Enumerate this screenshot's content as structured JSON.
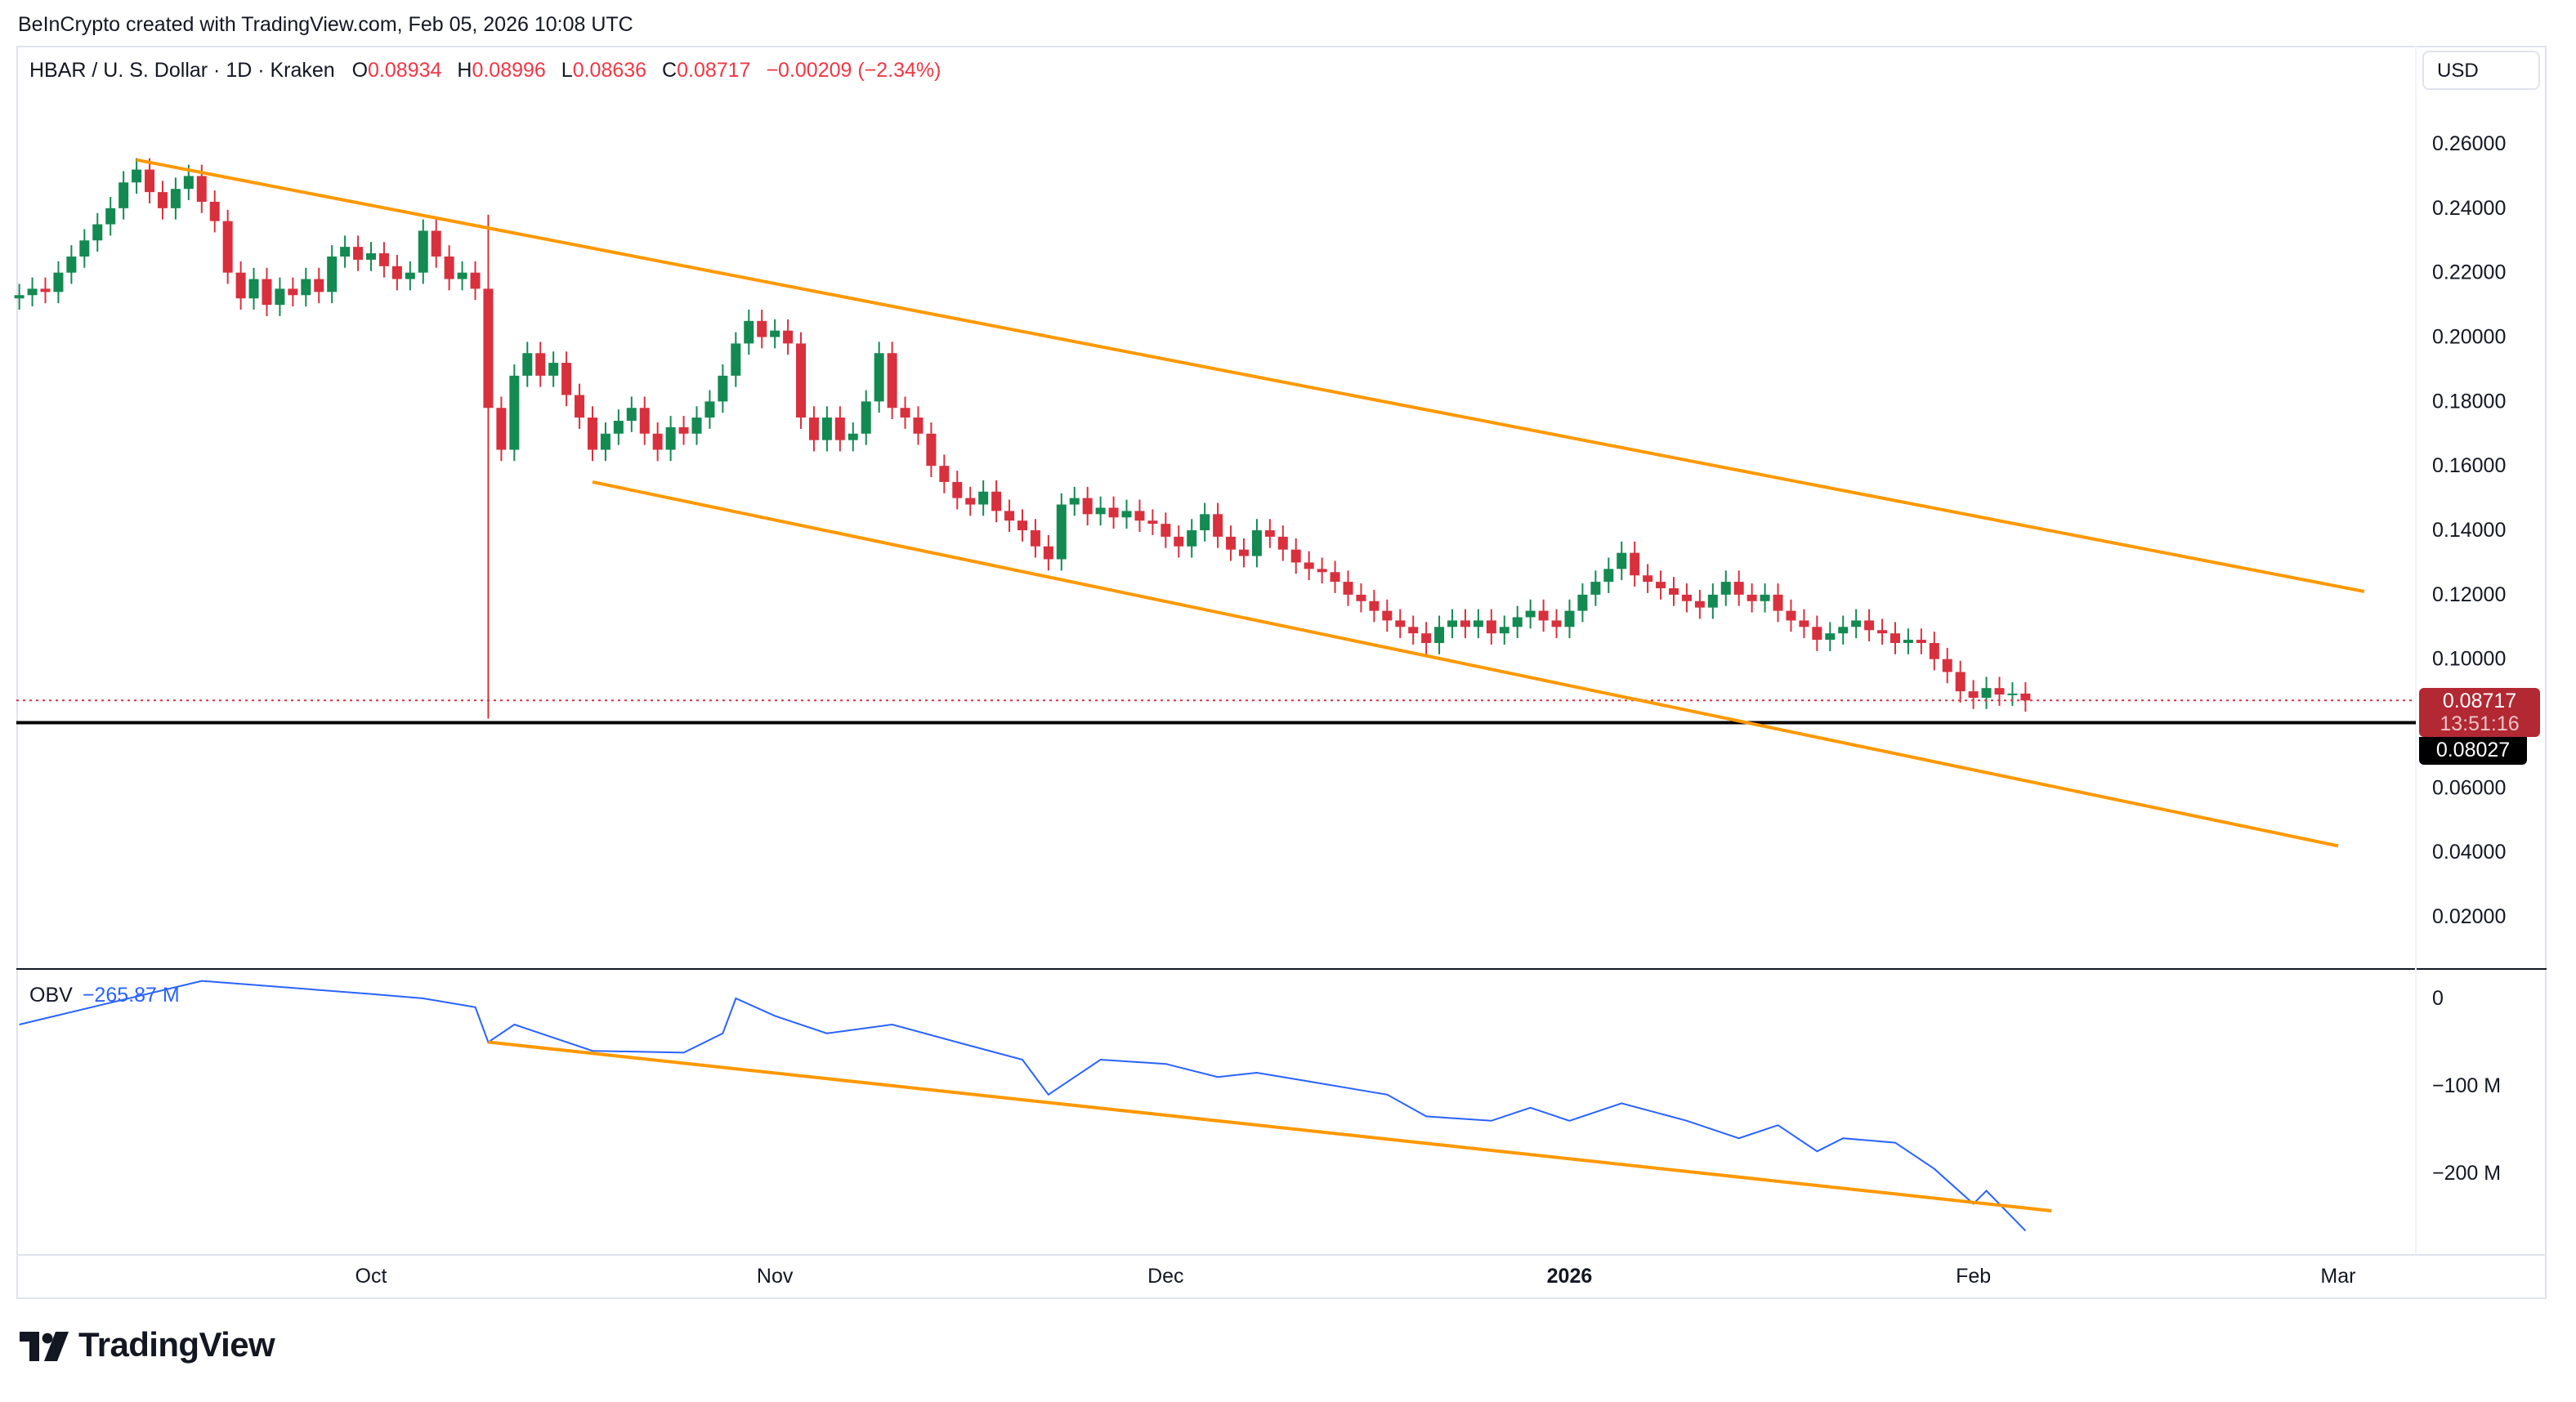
{
  "attribution": "BeInCrypto created with TradingView.com, Feb 05, 2026 10:08 UTC",
  "legend": {
    "symbol": "HBAR / U. S. Dollar · 1D · Kraken",
    "o_label": "O",
    "open": "0.08934",
    "h_label": "H",
    "high": "0.08996",
    "l_label": "L",
    "low": "0.08636",
    "c_label": "C",
    "close": "0.08717",
    "change": "−0.00209 (−2.34%)"
  },
  "currency_button": "USD",
  "price_tag": {
    "value": "0.08717",
    "countdown": "13:51:16"
  },
  "support_tag": "0.08027",
  "obv_label": "OBV",
  "obv_value": "−265.87 M",
  "logo_text": "TradingView",
  "colors": {
    "up": "#138a52",
    "down": "#d9303e",
    "trend": "#ff9800",
    "obv": "#2962ff"
  },
  "chart_data": [
    {
      "type": "candlestick",
      "title": "HBAR / U. S. Dollar · 1D · Kraken",
      "start_date": "2025-09-04",
      "closes": [
        0.213,
        0.215,
        0.214,
        0.22,
        0.225,
        0.23,
        0.235,
        0.24,
        0.248,
        0.252,
        0.245,
        0.24,
        0.246,
        0.25,
        0.242,
        0.236,
        0.22,
        0.212,
        0.218,
        0.21,
        0.215,
        0.213,
        0.218,
        0.214,
        0.225,
        0.228,
        0.224,
        0.226,
        0.222,
        0.218,
        0.22,
        0.233,
        0.225,
        0.218,
        0.22,
        0.215,
        0.178,
        0.165,
        0.188,
        0.195,
        0.188,
        0.192,
        0.182,
        0.175,
        0.165,
        0.17,
        0.174,
        0.178,
        0.17,
        0.165,
        0.172,
        0.17,
        0.175,
        0.18,
        0.188,
        0.198,
        0.205,
        0.2,
        0.202,
        0.198,
        0.175,
        0.168,
        0.175,
        0.168,
        0.17,
        0.18,
        0.195,
        0.178,
        0.175,
        0.17,
        0.16,
        0.155,
        0.15,
        0.148,
        0.152,
        0.146,
        0.143,
        0.14,
        0.135,
        0.131,
        0.148,
        0.15,
        0.145,
        0.147,
        0.144,
        0.146,
        0.143,
        0.142,
        0.138,
        0.135,
        0.14,
        0.145,
        0.138,
        0.134,
        0.132,
        0.14,
        0.138,
        0.134,
        0.13,
        0.128,
        0.127,
        0.124,
        0.12,
        0.118,
        0.115,
        0.112,
        0.11,
        0.108,
        0.105,
        0.11,
        0.112,
        0.11,
        0.112,
        0.108,
        0.11,
        0.113,
        0.115,
        0.112,
        0.11,
        0.115,
        0.12,
        0.124,
        0.128,
        0.133,
        0.126,
        0.124,
        0.122,
        0.12,
        0.118,
        0.116,
        0.12,
        0.124,
        0.12,
        0.118,
        0.12,
        0.115,
        0.112,
        0.11,
        0.106,
        0.108,
        0.11,
        0.112,
        0.109,
        0.108,
        0.105,
        0.106,
        0.105,
        0.1,
        0.096,
        0.09,
        0.088,
        0.091,
        0.089,
        0.0893,
        0.08717
      ],
      "first_open": 0.212,
      "crash_candle": {
        "date": "2025-10-10",
        "low": 0.0815,
        "high": 0.238
      },
      "y_ticks": [
        "0.26000",
        "0.24000",
        "0.22000",
        "0.20000",
        "0.18000",
        "0.16000",
        "0.14000",
        "0.12000",
        "0.10000",
        "0.06000",
        "0.04000",
        "0.02000"
      ],
      "y_tick_values": [
        0.26,
        0.24,
        0.22,
        0.2,
        0.18,
        0.16,
        0.14,
        0.12,
        0.1,
        0.06,
        0.04,
        0.02
      ],
      "ylim": [
        0.0,
        0.27
      ],
      "x_ticks": [
        {
          "label": "Oct",
          "date": "2025-10-01"
        },
        {
          "label": "Nov",
          "date": "2025-11-01"
        },
        {
          "label": "Dec",
          "date": "2025-12-01"
        },
        {
          "label": "2026",
          "date": "2026-01-01"
        },
        {
          "label": "Feb",
          "date": "2026-02-01"
        },
        {
          "label": "Mar",
          "date": "2026-03-01"
        }
      ],
      "support_level": 0.08027,
      "trendlines": [
        {
          "name": "upper-channel",
          "from": [
            "2025-09-13",
            0.255
          ],
          "to": [
            "2026-03-03",
            0.121
          ]
        },
        {
          "name": "lower-channel",
          "from": [
            "2025-10-18",
            0.155
          ],
          "to": [
            "2026-03-01",
            0.042
          ]
        }
      ]
    },
    {
      "type": "line",
      "title": "OBV",
      "unit": "M",
      "dates": [
        "2025-09-04",
        "2025-09-18",
        "2025-10-01",
        "2025-10-05",
        "2025-10-09",
        "2025-10-10",
        "2025-10-12",
        "2025-10-18",
        "2025-10-25",
        "2025-10-28",
        "2025-10-29",
        "2025-11-01",
        "2025-11-05",
        "2025-11-10",
        "2025-11-15",
        "2025-11-20",
        "2025-11-22",
        "2025-11-26",
        "2025-12-01",
        "2025-12-05",
        "2025-12-08",
        "2025-12-12",
        "2025-12-18",
        "2025-12-21",
        "2025-12-26",
        "2025-12-29",
        "2026-01-01",
        "2026-01-05",
        "2026-01-10",
        "2026-01-14",
        "2026-01-17",
        "2026-01-20",
        "2026-01-22",
        "2026-01-26",
        "2026-01-29",
        "2026-02-01",
        "2026-02-02",
        "2026-02-05"
      ],
      "values": [
        -30,
        20,
        5,
        0,
        -10,
        -50,
        -30,
        -60,
        -62,
        -40,
        0,
        -20,
        -40,
        -30,
        -50,
        -70,
        -110,
        -70,
        -75,
        -90,
        -85,
        -95,
        -110,
        -135,
        -140,
        -125,
        -140,
        -120,
        -140,
        -160,
        -145,
        -175,
        -160,
        -165,
        -195,
        -235,
        -220,
        -265.87
      ],
      "y_ticks": [
        "0",
        "−100 M",
        "−200 M"
      ],
      "y_tick_values": [
        0,
        -100,
        -200
      ],
      "trendline": {
        "from": [
          "2025-10-10",
          -50
        ],
        "to": [
          "2026-02-07",
          -243
        ]
      }
    }
  ]
}
